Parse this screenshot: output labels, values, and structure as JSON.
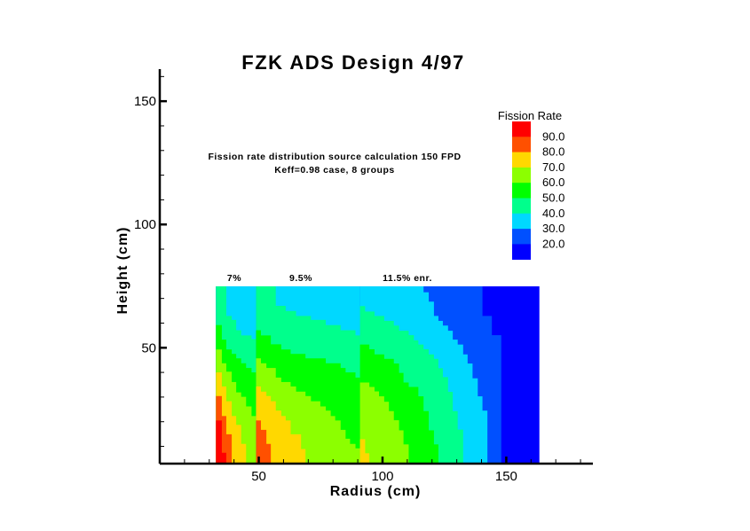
{
  "chart_data": {
    "type": "heatmap",
    "title": "FZK ADS Design  4/97",
    "xlabel": "Radius (cm)",
    "ylabel": "Height (cm)",
    "xlim": [
      10,
      185
    ],
    "ylim": [
      3,
      163
    ],
    "x_major_ticks": [
      50,
      100,
      150
    ],
    "x_minor_step": 10,
    "y_major_ticks": [
      50,
      100,
      150
    ],
    "y_minor_step": 10,
    "grid": false,
    "legend": {
      "title": "Fission Rate",
      "placement": "top-right",
      "labels": [
        "90.0",
        "80.0",
        "70.0",
        "60.0",
        "50.0",
        "40.0",
        "30.0",
        "20.0"
      ],
      "colors_high_to_low": [
        "#ff0000",
        "#ff5000",
        "#ffd800",
        "#8cff00",
        "#00ff00",
        "#00ff8c",
        "#00d8ff",
        "#0050ff",
        "#0000ff"
      ]
    },
    "level_colors": {
      "10": "#0000ff",
      "20": "#0050ff",
      "30": "#00d8ff",
      "40": "#00ff8c",
      "50": "#00ff00",
      "60": "#8cff00",
      "70": "#ffd800",
      "80": "#ff5000",
      "90": "#ff0000"
    },
    "annotations": [
      "Fission rate distribution source calculation 150 FPD",
      "Keff=0.98 case, 8 groups"
    ],
    "zone_labels": [
      "7%",
      "9.5%",
      "11.5% enr."
    ],
    "zones": [
      {
        "r": [
          32.7,
          48.9
        ],
        "z": [
          2.9,
          74.9
        ],
        "levels_at_least_steps_r_end_z_top": {
          "20": [
            [
              48.9,
              74.9
            ]
          ],
          "30": [
            [
              48.9,
              74.9
            ]
          ],
          "40": [
            [
              36.7,
              74.9
            ],
            [
              38.9,
              62.9
            ],
            [
              40.7,
              61.3
            ],
            [
              42.7,
              57.1
            ],
            [
              46.9,
              55.0
            ],
            [
              48.9,
              53.5
            ]
          ],
          "50": [
            [
              34.9,
              59.2
            ],
            [
              36.7,
              53.3
            ],
            [
              38.9,
              49.3
            ],
            [
              40.7,
              47.5
            ],
            [
              42.7,
              45.7
            ],
            [
              44.7,
              43.7
            ],
            [
              46.9,
              41.8
            ],
            [
              48.9,
              40.0
            ]
          ],
          "60": [
            [
              34.9,
              49.3
            ],
            [
              36.7,
              43.7
            ],
            [
              38.9,
              40.3
            ],
            [
              40.7,
              36.1
            ],
            [
              42.7,
              31.9
            ],
            [
              44.7,
              30.1
            ],
            [
              46.9,
              26.2
            ],
            [
              48.9,
              22.3
            ]
          ],
          "70": [
            [
              34.9,
              40.0
            ],
            [
              36.7,
              34.3
            ],
            [
              38.9,
              28.3
            ],
            [
              40.7,
              22.3
            ],
            [
              42.7,
              18.7
            ],
            [
              44.7,
              11.0
            ]
          ],
          "80": [
            [
              34.9,
              30.4
            ],
            [
              36.7,
              22.3
            ],
            [
              38.9,
              14.9
            ]
          ],
          "90": [
            [
              34.9,
              20.5
            ],
            [
              36.7,
              7.4
            ]
          ]
        }
      },
      {
        "r": [
          48.9,
          90.9
        ],
        "z": [
          2.9,
          74.9
        ],
        "levels_at_least_steps_r_end_z_top": {
          "20": [
            [
              90.9,
              74.9
            ]
          ],
          "30": [
            [
              90.9,
              74.9
            ]
          ],
          "40": [
            [
              56.7,
              74.9
            ],
            [
              60.7,
              67.0
            ],
            [
              64.9,
              64.9
            ],
            [
              70.9,
              62.9
            ],
            [
              76.9,
              61.3
            ],
            [
              82.9,
              59.2
            ],
            [
              88.9,
              57.1
            ],
            [
              90.9,
              55.0
            ]
          ],
          "50": [
            [
              50.7,
              57.1
            ],
            [
              54.7,
              55.0
            ],
            [
              58.9,
              51.4
            ],
            [
              62.7,
              49.3
            ],
            [
              68.7,
              47.5
            ],
            [
              76.9,
              45.7
            ],
            [
              82.9,
              43.7
            ],
            [
              84.9,
              41.8
            ],
            [
              88.9,
              40.0
            ],
            [
              90.9,
              37.9
            ]
          ],
          "60": [
            [
              50.7,
              45.7
            ],
            [
              52.9,
              43.7
            ],
            [
              56.7,
              41.8
            ],
            [
              58.9,
              37.9
            ],
            [
              62.7,
              36.1
            ],
            [
              64.9,
              34.3
            ],
            [
              68.7,
              32.2
            ],
            [
              70.9,
              30.4
            ],
            [
              74.7,
              28.3
            ],
            [
              76.9,
              26.2
            ],
            [
              78.9,
              24.5
            ],
            [
              80.7,
              22.3
            ],
            [
              82.9,
              20.5
            ],
            [
              84.9,
              16.7
            ],
            [
              86.7,
              13.1
            ],
            [
              88.9,
              11.0
            ],
            [
              90.9,
              9.2
            ]
          ],
          "70": [
            [
              50.7,
              34.3
            ],
            [
              52.9,
              32.2
            ],
            [
              54.7,
              30.4
            ],
            [
              56.7,
              28.3
            ],
            [
              58.9,
              24.5
            ],
            [
              60.7,
              22.3
            ],
            [
              62.7,
              20.5
            ],
            [
              66.9,
              14.9
            ],
            [
              68.7,
              8.9
            ]
          ],
          "80": [
            [
              50.7,
              20.5
            ],
            [
              52.9,
              16.7
            ],
            [
              54.7,
              11.0
            ]
          ]
        }
      },
      {
        "r": [
          90.9,
          163.2
        ],
        "z": [
          2.9,
          74.9
        ],
        "levels_at_least_steps_r_end_z_top": {
          "20": [
            [
              140.2,
              74.9
            ],
            [
              144.0,
              62.9
            ],
            [
              147.8,
              55.1
            ]
          ],
          "30": [
            [
              116.4,
              74.9
            ],
            [
              118.5,
              72.5
            ],
            [
              120.6,
              68.7
            ],
            [
              122.4,
              62.9
            ],
            [
              124.2,
              60.9
            ],
            [
              126.3,
              59.0
            ],
            [
              128.2,
              56.9
            ],
            [
              130.2,
              53.3
            ],
            [
              132.4,
              51.3
            ],
            [
              134.2,
              47.3
            ],
            [
              136.2,
              43.6
            ],
            [
              138.3,
              37.6
            ],
            [
              140.2,
              30.3
            ],
            [
              142.2,
              24.5
            ]
          ],
          "40": [
            [
              92.8,
              66.9
            ],
            [
              96.6,
              64.7
            ],
            [
              100.5,
              62.9
            ],
            [
              104.4,
              60.9
            ],
            [
              106.5,
              59.0
            ],
            [
              110.4,
              56.9
            ],
            [
              112.5,
              55.1
            ],
            [
              114.3,
              53.0
            ],
            [
              116.4,
              51.3
            ],
            [
              118.5,
              49.4
            ],
            [
              120.6,
              47.3
            ],
            [
              122.4,
              45.5
            ],
            [
              124.2,
              41.7
            ],
            [
              126.3,
              38.1
            ],
            [
              128.2,
              32.1
            ],
            [
              130.2,
              24.3
            ],
            [
              132.4,
              16.8
            ]
          ],
          "50": [
            [
              94.5,
              51.3
            ],
            [
              96.6,
              49.4
            ],
            [
              100.5,
              47.3
            ],
            [
              104.4,
              45.5
            ],
            [
              106.5,
              43.6
            ],
            [
              108.3,
              39.8
            ],
            [
              110.4,
              35.9
            ],
            [
              114.3,
              34.1
            ],
            [
              116.4,
              30.3
            ],
            [
              118.5,
              24.3
            ],
            [
              120.6,
              16.5
            ],
            [
              122.4,
              10.8
            ]
          ],
          "60": [
            [
              94.5,
              35.9
            ],
            [
              96.6,
              34.1
            ],
            [
              98.4,
              32.3
            ],
            [
              100.5,
              30.3
            ],
            [
              102.4,
              28.1
            ],
            [
              104.4,
              24.3
            ],
            [
              106.5,
              20.6
            ],
            [
              108.3,
              16.5
            ],
            [
              110.4,
              10.8
            ]
          ],
          "70": [
            [
              92.8,
              12.9
            ],
            [
              94.5,
              7.2
            ]
          ]
        }
      }
    ]
  }
}
